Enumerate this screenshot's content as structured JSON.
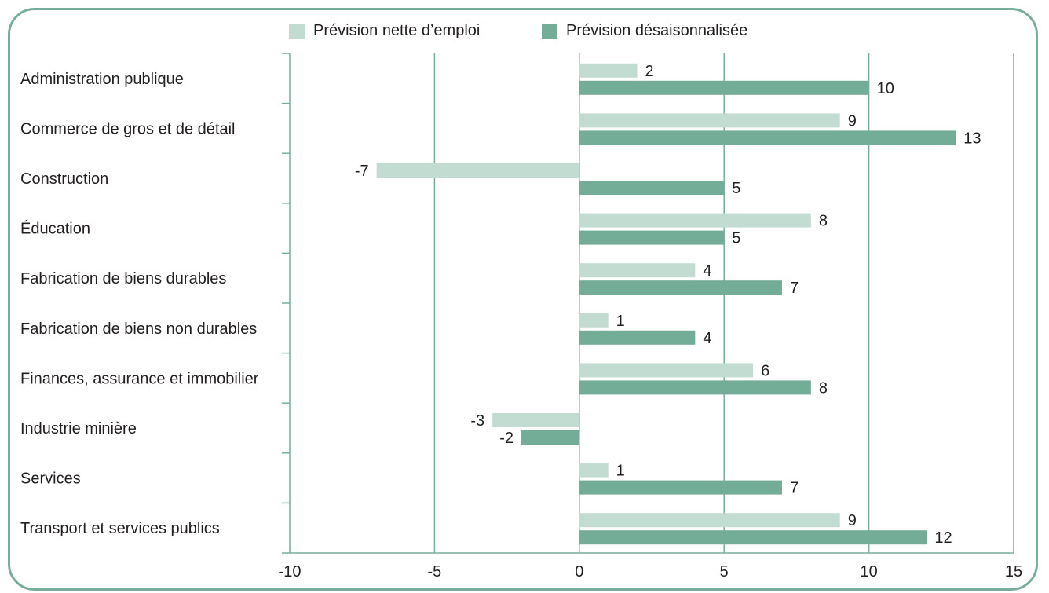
{
  "chart_data": {
    "type": "bar",
    "orientation": "horizontal",
    "categories": [
      "Administration publique",
      "Commerce de gros et de détail",
      "Construction",
      "Éducation",
      "Fabrication de biens durables",
      "Fabrication de biens non durables",
      "Finances, assurance et immobilier",
      "Industrie minière",
      "Services",
      "Transport et services publics"
    ],
    "series": [
      {
        "name": "Prévision nette d’emploi",
        "color": "#c3dcd2",
        "values": [
          2,
          9,
          -7,
          8,
          4,
          1,
          6,
          -3,
          1,
          9
        ]
      },
      {
        "name": "Prévision désaisonnalisée",
        "color": "#73ad98",
        "values": [
          10,
          13,
          5,
          5,
          7,
          4,
          8,
          -2,
          7,
          12
        ]
      }
    ],
    "xlim": [
      -10,
      15
    ],
    "xticks": [
      -10,
      -5,
      0,
      5,
      10,
      15
    ],
    "grid": true,
    "legend_position": "top",
    "title": "",
    "xlabel": "",
    "ylabel": ""
  },
  "colors": {
    "frame": "#78ae99",
    "axis": "#78ae99",
    "text": "#231f20"
  }
}
